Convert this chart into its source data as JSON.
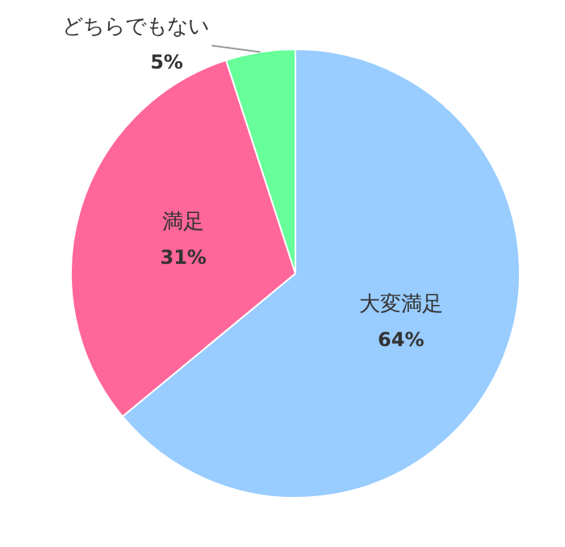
{
  "chart_data": {
    "type": "pie",
    "categories": [
      "大変満足",
      "満足",
      "どちらでもない"
    ],
    "values": [
      64,
      31,
      5
    ],
    "colors": [
      "#99ccff",
      "#ff6699",
      "#66ff99"
    ],
    "value_labels": [
      "64%",
      "31%",
      "5%"
    ]
  }
}
